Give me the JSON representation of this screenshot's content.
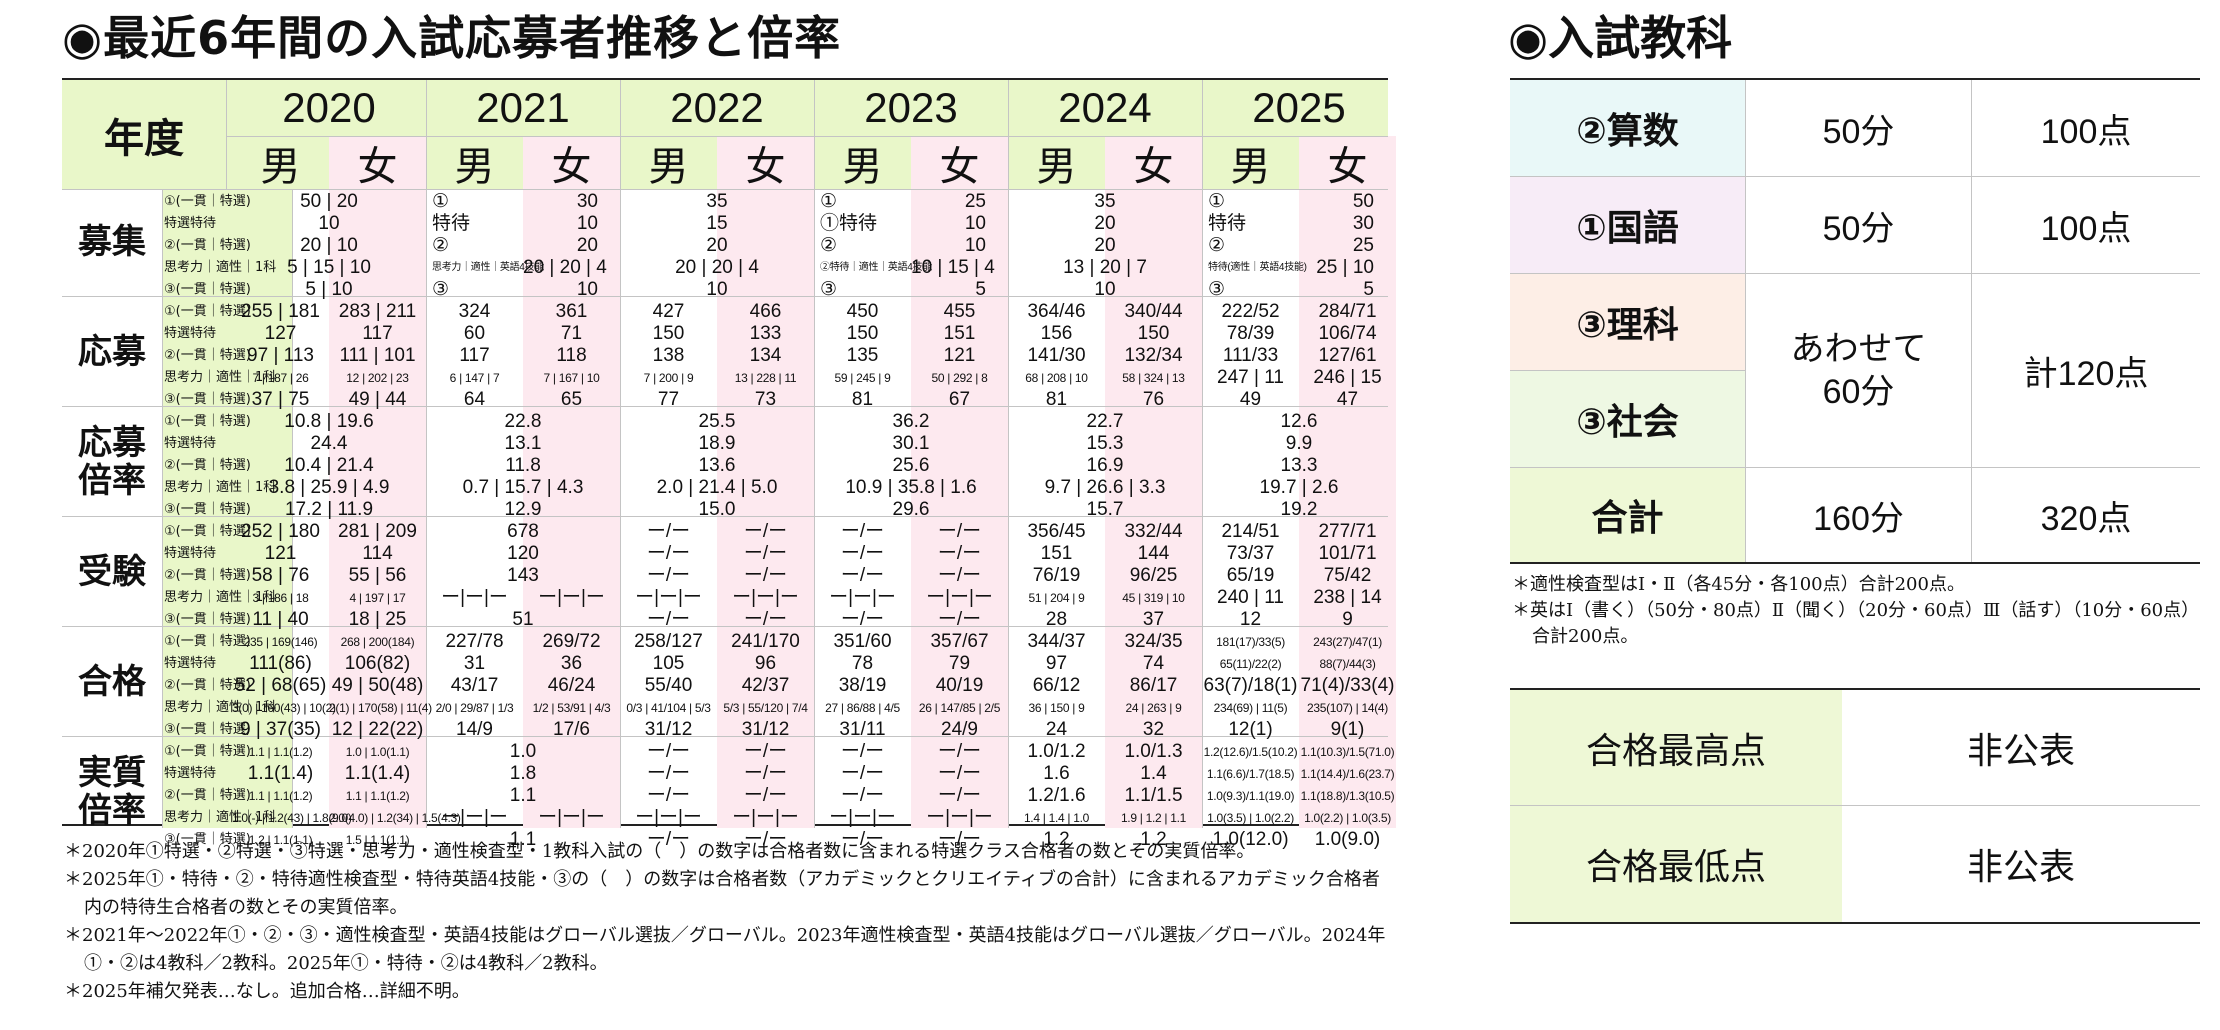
{
  "title": "◉最近6年間の入試応募者推移と倍率",
  "nendo": "年度",
  "years": [
    "2020",
    "2021",
    "2022",
    "2023",
    "2024",
    "2025"
  ],
  "male": "男",
  "female": "女",
  "sections": [
    "募集",
    "応募",
    "応募\n倍率",
    "受験",
    "合格",
    "実質\n倍率"
  ],
  "subrows": [
    "①(一貫｜特選)",
    "特選特待",
    "②(一貫｜特選)",
    "思考力｜適性｜1科",
    "③(一貫｜特選)"
  ],
  "rows": [
    [
      [
        [
          "50 | 20",
          "c"
        ],
        [
          "10",
          "c"
        ],
        [
          "20 | 10",
          "c"
        ],
        [
          "5 | 15 | 10",
          "c"
        ],
        [
          "5 | 10",
          "c"
        ]
      ],
      [
        [
          "①",
          "l",
          "30"
        ],
        [
          "特待",
          "l",
          "10"
        ],
        [
          "②",
          "l",
          "20"
        ],
        [
          "思考力｜適性｜英語4技能",
          "ls",
          "20 | 20 | 4"
        ],
        [
          "③",
          "l",
          "10"
        ]
      ],
      [
        [
          "35",
          "c"
        ],
        [
          "15",
          "c"
        ],
        [
          "20",
          "c"
        ],
        [
          "20 | 20 | 4",
          "c"
        ],
        [
          "10",
          "c"
        ]
      ],
      [
        [
          "①",
          "l",
          "25"
        ],
        [
          "①特待",
          "l",
          "10"
        ],
        [
          "②",
          "l",
          "10"
        ],
        [
          "②特待｜適性｜英語4技能",
          "ls",
          "10 | 15 | 4"
        ],
        [
          "③",
          "l",
          "5"
        ]
      ],
      [
        [
          "35",
          "c"
        ],
        [
          "20",
          "c"
        ],
        [
          "20",
          "c"
        ],
        [
          "13 | 20 | 7",
          "c"
        ],
        [
          "10",
          "c"
        ]
      ],
      [
        [
          "①",
          "l",
          "50"
        ],
        [
          "特待",
          "l",
          "30"
        ],
        [
          "②",
          "l",
          "25"
        ],
        [
          "特待(適性｜英語4技能)",
          "ls",
          "25 | 10"
        ],
        [
          "③",
          "l",
          "5"
        ]
      ]
    ],
    [
      [
        [
          "255 | 181",
          "283 | 211"
        ],
        [
          "127",
          "117"
        ],
        [
          "97 | 113",
          "111 | 101"
        ],
        [
          "7 | 187 | 26",
          "12 | 202 | 23"
        ],
        [
          "37 | 75",
          "49 | 44"
        ]
      ],
      [
        [
          "324",
          "361"
        ],
        [
          "60",
          "71"
        ],
        [
          "117",
          "118"
        ],
        [
          "6 | 147 | 7",
          "7 | 167 | 10"
        ],
        [
          "64",
          "65"
        ]
      ],
      [
        [
          "427",
          "466"
        ],
        [
          "150",
          "133"
        ],
        [
          "138",
          "134"
        ],
        [
          "7 | 200 | 9",
          "13 | 228 | 11"
        ],
        [
          "77",
          "73"
        ]
      ],
      [
        [
          "450",
          "455"
        ],
        [
          "150",
          "151"
        ],
        [
          "135",
          "121"
        ],
        [
          "59 | 245 | 9",
          "50 | 292 | 8"
        ],
        [
          "81",
          "67"
        ]
      ],
      [
        [
          "364/46",
          "340/44"
        ],
        [
          "156",
          "150"
        ],
        [
          "141/30",
          "132/34"
        ],
        [
          "68 | 208 | 10",
          "58 | 324 | 13"
        ],
        [
          "81",
          "76"
        ]
      ],
      [
        [
          "222/52",
          "284/71"
        ],
        [
          "78/39",
          "106/74"
        ],
        [
          "111/33",
          "127/61"
        ],
        [
          "247 | 11",
          "246 | 15"
        ],
        [
          "49",
          "47"
        ]
      ]
    ],
    [
      [
        [
          "10.8 | 19.6",
          "c"
        ],
        [
          "24.4",
          "c"
        ],
        [
          "10.4 | 21.4",
          "c"
        ],
        [
          "3.8 | 25.9 | 4.9",
          "c"
        ],
        [
          "17.2 | 11.9",
          "c"
        ]
      ],
      [
        [
          "22.8",
          "c"
        ],
        [
          "13.1",
          "c"
        ],
        [
          "11.8",
          "c"
        ],
        [
          "0.7 | 15.7 | 4.3",
          "c"
        ],
        [
          "12.9",
          "c"
        ]
      ],
      [
        [
          "25.5",
          "c"
        ],
        [
          "18.9",
          "c"
        ],
        [
          "13.6",
          "c"
        ],
        [
          "2.0 | 21.4 | 5.0",
          "c"
        ],
        [
          "15.0",
          "c"
        ]
      ],
      [
        [
          "36.2",
          "c"
        ],
        [
          "30.1",
          "c"
        ],
        [
          "25.6",
          "c"
        ],
        [
          "10.9 | 35.8 | 1.6",
          "c"
        ],
        [
          "29.6",
          "c"
        ]
      ],
      [
        [
          "22.7",
          "c"
        ],
        [
          "15.3",
          "c"
        ],
        [
          "16.9",
          "c"
        ],
        [
          "9.7 | 26.6 | 3.3",
          "c"
        ],
        [
          "15.7",
          "c"
        ]
      ],
      [
        [
          "12.6",
          "c"
        ],
        [
          "9.9",
          "c"
        ],
        [
          "13.3",
          "c"
        ],
        [
          "19.7 | 2.6",
          "c"
        ],
        [
          "19.2",
          "c"
        ]
      ]
    ],
    [
      [
        [
          "252 | 180",
          "281 | 209"
        ],
        [
          "121",
          "114"
        ],
        [
          "58 | 76",
          "55 | 56"
        ],
        [
          "3 | 186 | 18",
          "4 | 197 | 17"
        ],
        [
          "11 | 40",
          "18 | 25"
        ]
      ],
      [
        [
          "678",
          "c"
        ],
        [
          "120",
          "c"
        ],
        [
          "143",
          "c"
        ],
        [
          "ー|ー|ー",
          "ー|ー|ー"
        ],
        [
          "51",
          "c"
        ]
      ],
      [
        [
          "ー/ー",
          "ー/ー"
        ],
        [
          "ー/ー",
          "ー/ー"
        ],
        [
          "ー/ー",
          "ー/ー"
        ],
        [
          "ー|ー|ー",
          "ー|ー|ー"
        ],
        [
          "ー/ー",
          "ー/ー"
        ]
      ],
      [
        [
          "ー/ー",
          "ー/ー"
        ],
        [
          "ー/ー",
          "ー/ー"
        ],
        [
          "ー/ー",
          "ー/ー"
        ],
        [
          "ー|ー|ー",
          "ー|ー|ー"
        ],
        [
          "ー/ー",
          "ー/ー"
        ]
      ],
      [
        [
          "356/45",
          "332/44"
        ],
        [
          "151",
          "144"
        ],
        [
          "76/19",
          "96/25"
        ],
        [
          "51 | 204 | 9",
          "45 | 319 | 10"
        ],
        [
          "28",
          "37"
        ]
      ],
      [
        [
          "214/51",
          "277/71"
        ],
        [
          "73/37",
          "101/71"
        ],
        [
          "65/19",
          "75/42"
        ],
        [
          "240 | 11",
          "238 | 14"
        ],
        [
          "12",
          "9"
        ]
      ]
    ],
    [
      [
        [
          "235 | 169(146)",
          "268 | 200(184)"
        ],
        [
          "111(86)",
          "106(82)"
        ],
        [
          "52 | 68(65)",
          "49 | 50(48)"
        ],
        [
          "3(0) | 160(43) | 10(2)",
          "2(1) | 170(58) | 11(4)"
        ],
        [
          "9 | 37(35)",
          "12 | 22(22)"
        ]
      ],
      [
        [
          "227/78",
          "269/72"
        ],
        [
          "31",
          "36"
        ],
        [
          "43/17",
          "46/24"
        ],
        [
          "2/0 | 29/87 | 1/3",
          "1/2 | 53/91 | 4/3"
        ],
        [
          "14/9",
          "17/6"
        ]
      ],
      [
        [
          "258/127",
          "241/170"
        ],
        [
          "105",
          "96"
        ],
        [
          "55/40",
          "42/37"
        ],
        [
          "0/3 | 41/104 | 5/3",
          "5/3 | 55/120 | 7/4"
        ],
        [
          "31/12",
          "31/12"
        ]
      ],
      [
        [
          "351/60",
          "357/67"
        ],
        [
          "78",
          "79"
        ],
        [
          "38/19",
          "40/19"
        ],
        [
          "27 | 86/88 | 4/5",
          "26 | 147/85 | 2/5"
        ],
        [
          "31/11",
          "24/9"
        ]
      ],
      [
        [
          "344/37",
          "324/35"
        ],
        [
          "97",
          "74"
        ],
        [
          "66/12",
          "86/17"
        ],
        [
          "36 | 150 | 9",
          "24 | 263 | 9"
        ],
        [
          "24",
          "32"
        ]
      ],
      [
        [
          "181(17)/33(5)",
          "243(27)/47(1)"
        ],
        [
          "65(11)/22(2)",
          "88(7)/44(3)"
        ],
        [
          "63(7)/18(1)",
          "71(4)/33(4)"
        ],
        [
          "234(69) | 11(5)",
          "235(107) | 14(4)"
        ],
        [
          "12(1)",
          "9(1)"
        ]
      ]
    ],
    [
      [
        [
          "1.1 | 1.1(1.2)",
          "1.0 | 1.0(1.1)"
        ],
        [
          "1.1(1.4)",
          "1.1(1.4)"
        ],
        [
          "1.1 | 1.1(1.2)",
          "1.1 | 1.1(1.2)"
        ],
        [
          "1.0(-) | 1.2(43) | 1.8(9.0)",
          "2.0(4.0) | 1.2(34) | 1.5(4.3)"
        ],
        [
          "1.2 | 1.1(1.1)",
          "1.5 | 1.1(1.1)"
        ]
      ],
      [
        [
          "1.0",
          "c"
        ],
        [
          "1.8",
          "c"
        ],
        [
          "1.1",
          "c"
        ],
        [
          "ー|ー|ー",
          "ー|ー|ー"
        ],
        [
          "1.1",
          "c"
        ]
      ],
      [
        [
          "ー/ー",
          "ー/ー"
        ],
        [
          "ー/ー",
          "ー/ー"
        ],
        [
          "ー/ー",
          "ー/ー"
        ],
        [
          "ー|ー|ー",
          "ー|ー|ー"
        ],
        [
          "ー/ー",
          "ー/ー"
        ]
      ],
      [
        [
          "ー/ー",
          "ー/ー"
        ],
        [
          "ー/ー",
          "ー/ー"
        ],
        [
          "ー/ー",
          "ー/ー"
        ],
        [
          "ー|ー|ー",
          "ー|ー|ー"
        ],
        [
          "ー/ー",
          "ー/ー"
        ]
      ],
      [
        [
          "1.0/1.2",
          "1.0/1.3"
        ],
        [
          "1.6",
          "1.4"
        ],
        [
          "1.2/1.6",
          "1.1/1.5"
        ],
        [
          "1.4 | 1.4 | 1.0",
          "1.9 | 1.2 | 1.1"
        ],
        [
          "1.2",
          "1.2"
        ]
      ],
      [
        [
          "1.2(12.6)/1.5(10.2)",
          "1.1(10.3)/1.5(71.0)"
        ],
        [
          "1.1(6.6)/1.7(18.5)",
          "1.1(14.4)/1.6(23.7)"
        ],
        [
          "1.0(9.3)/1.1(19.0)",
          "1.1(18.8)/1.3(10.5)"
        ],
        [
          "1.0(3.5) | 1.0(2.2)",
          "1.0(2.2) | 1.0(3.5)"
        ],
        [
          "1.0(12.0)",
          "1.0(9.0)"
        ]
      ]
    ]
  ],
  "notes": [
    "＊2020年①特選・②特選・③特選・思考力・適性検査型・1教科入試の（　）の数字は合格者数に含まれる特選クラス合格者の数とその実質倍率。",
    "＊2025年①・特待・②・特待適性検査型・特待英語4技能・③の（　）の数字は合格者数（アカデミックとクリエイティブの合計）に含まれるアカデミック合格者内の特待生合格者の数とその実質倍率。",
    "＊2021年〜2022年①・②・③・適性検査型・英語4技能はグローバル選抜／グローバル。2023年適性検査型・英語4技能はグローバル選抜／グローバル。2024年①・②は4教科／2教科。2025年①・特待・②は4教科／2教科。",
    "＊2025年補欠発表…なし。追加合格…詳細不明。"
  ],
  "subjects_title": "◉入試教科",
  "subjects": [
    {
      "name": "②算数",
      "time": "50分",
      "points": "100点",
      "color": "#e9f8f8"
    },
    {
      "name": "①国語",
      "time": "50分",
      "points": "100点",
      "color": "#f7ecf7"
    },
    {
      "name": "③理科",
      "color": "#fdeee6"
    },
    {
      "name": "③社会",
      "color": "#eef8e3"
    }
  ],
  "combined": {
    "time": "あわせて\n60分",
    "points": "計120点"
  },
  "total": {
    "name": "合計",
    "time": "160分",
    "points": "320点",
    "color": "#eef8d6"
  },
  "subject_notes": [
    "＊適性検査型はⅠ・Ⅱ（各45分・各100点）合計200点。",
    "＊英はⅠ（書く）（50分・80点）Ⅱ（聞く）（20分・60点）Ⅲ（話す）（10分・60点）合計200点。"
  ],
  "pass_scores": [
    {
      "label": "合格最高点",
      "value": "非公表"
    },
    {
      "label": "合格最低点",
      "value": "非公表"
    }
  ]
}
